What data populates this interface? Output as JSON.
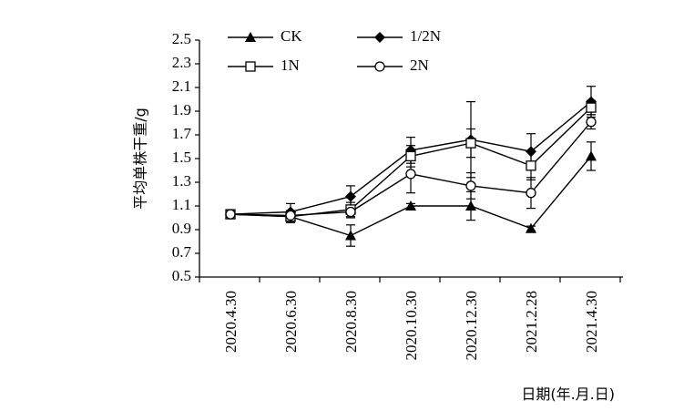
{
  "chart_data": {
    "type": "line",
    "categories": [
      "2020.4.30",
      "2020.6.30",
      "2020.8.30",
      "2020.10.30",
      "2020.12.30",
      "2021.2.28",
      "2021.4.30"
    ],
    "ylabel": "平均单株干重/g",
    "xlabel": "日期(年.月.日)",
    "ylim": [
      0.5,
      2.5
    ],
    "yticks": [
      "2.5",
      "2.3",
      "2.1",
      "1.9",
      "1.7",
      "1.5",
      "1.3",
      "1.1",
      "0.9",
      "0.7",
      "0.5"
    ],
    "grid": false,
    "legend_position": "top",
    "series": [
      {
        "name": "CK",
        "marker": "triangle",
        "values": [
          1.03,
          1.01,
          0.85,
          1.1,
          1.1,
          0.91,
          1.52
        ],
        "err": [
          0.02,
          0.05,
          0.09,
          0.02,
          0.12,
          0.02,
          0.12
        ]
      },
      {
        "name": "1/2N",
        "marker": "diamond",
        "values": [
          1.03,
          1.05,
          1.18,
          1.57,
          1.66,
          1.56,
          1.98
        ],
        "err": [
          0.02,
          0.07,
          0.09,
          0.11,
          0.32,
          0.15,
          0.13
        ]
      },
      {
        "name": "1N",
        "marker": "square",
        "values": [
          1.03,
          1.01,
          1.07,
          1.52,
          1.63,
          1.44,
          1.93
        ],
        "err": [
          0.02,
          0.05,
          0.06,
          0.09,
          0.12,
          0.12,
          0.06
        ]
      },
      {
        "name": "2N",
        "marker": "circle",
        "values": [
          1.03,
          1.02,
          1.05,
          1.37,
          1.27,
          1.21,
          1.81
        ],
        "err": [
          0.02,
          0.04,
          0.05,
          0.16,
          0.11,
          0.13,
          0.06
        ]
      }
    ]
  }
}
